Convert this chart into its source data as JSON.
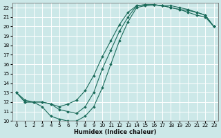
{
  "xlabel": "Humidex (Indice chaleur)",
  "bg_color": "#cce8e8",
  "grid_color": "#ffffff",
  "line_color": "#1a6b5a",
  "xlim": [
    -0.5,
    23.5
  ],
  "ylim": [
    10,
    22.5
  ],
  "xticks": [
    0,
    1,
    2,
    3,
    4,
    5,
    6,
    7,
    8,
    9,
    10,
    11,
    12,
    13,
    14,
    15,
    16,
    17,
    18,
    19,
    20,
    21,
    22,
    23
  ],
  "yticks": [
    10,
    11,
    12,
    13,
    14,
    15,
    16,
    17,
    18,
    19,
    20,
    21,
    22
  ],
  "curve1_x": [
    0,
    1,
    2,
    3,
    4,
    5,
    6,
    7,
    8,
    9,
    10,
    11,
    12,
    13,
    14,
    15,
    16,
    17,
    18,
    19,
    20,
    21,
    22,
    23
  ],
  "curve1_y": [
    13,
    12,
    12,
    11.5,
    10.5,
    10.2,
    10.0,
    10.0,
    10.5,
    11.5,
    13.5,
    16.0,
    18.5,
    20.5,
    22.0,
    22.2,
    22.3,
    22.2,
    22.2,
    22.0,
    21.8,
    21.5,
    21.2,
    20.0
  ],
  "curve2_x": [
    0,
    1,
    2,
    3,
    4,
    5,
    6,
    7,
    8,
    9,
    10,
    11,
    12,
    13,
    14,
    15,
    16,
    17,
    18,
    19,
    20,
    21,
    22,
    23
  ],
  "curve2_y": [
    13,
    12,
    12,
    12,
    11.8,
    11.5,
    11.8,
    12.2,
    13.2,
    14.8,
    16.8,
    18.5,
    20.2,
    21.5,
    22.2,
    22.3,
    22.3,
    22.2,
    22.0,
    21.8,
    21.5,
    21.2,
    21.0,
    20.0
  ],
  "curve3_x": [
    0,
    1,
    2,
    3,
    4,
    5,
    6,
    7,
    8,
    9,
    10,
    11,
    12,
    13,
    14,
    15,
    16,
    17,
    18,
    19,
    20,
    21,
    22,
    23
  ],
  "curve3_y": [
    13,
    12.2,
    12,
    12,
    11.8,
    11.2,
    11.0,
    10.8,
    11.5,
    13.0,
    15.5,
    17.5,
    19.5,
    21.0,
    22.2,
    22.3,
    22.3,
    22.2,
    22.0,
    21.8,
    21.7,
    21.5,
    21.2,
    20.0
  ]
}
